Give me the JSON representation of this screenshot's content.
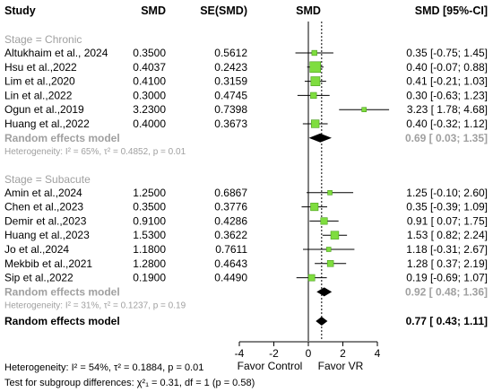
{
  "header": {
    "study": "Study",
    "smd": "SMD",
    "se": "SE(SMD)",
    "plot": "SMD",
    "ci": "SMD [95%-CI]"
  },
  "groups": [
    {
      "label": "Stage = Chronic",
      "studies": [
        {
          "name": "Altukhaim et al., 2024",
          "smd": "0.3500",
          "se": "0.5612",
          "ci_text": "0.35 [-0.75; 1.45]",
          "est": 0.35,
          "lo": -0.75,
          "hi": 1.45
        },
        {
          "name": "Hsu et al.,2022",
          "smd": "0.4037",
          "se": "0.2423",
          "ci_text": "0.40 [-0.07; 0.88]",
          "est": 0.4,
          "lo": -0.07,
          "hi": 0.88
        },
        {
          "name": "Lim et al.,2020",
          "smd": "0.4100",
          "se": "0.3159",
          "ci_text": "0.41 [-0.21; 1.03]",
          "est": 0.41,
          "lo": -0.21,
          "hi": 1.03
        },
        {
          "name": "Lin et al.,2022",
          "smd": "0.3000",
          "se": "0.4745",
          "ci_text": "0.30 [-0.63; 1.23]",
          "est": 0.3,
          "lo": -0.63,
          "hi": 1.23
        },
        {
          "name": "Ogun et al.,2019",
          "smd": "3.2300",
          "se": "0.7398",
          "ci_text": "3.23 [ 1.78; 4.68]",
          "est": 3.23,
          "lo": 1.78,
          "hi": 4.68
        },
        {
          "name": "Huang et al.,2022",
          "smd": "0.4000",
          "se": "0.3673",
          "ci_text": "0.40 [-0.32; 1.12]",
          "est": 0.4,
          "lo": -0.32,
          "hi": 1.12
        }
      ],
      "summary": {
        "label": "Random effects model",
        "ci_text": "0.69 [ 0.03; 1.35]",
        "est": 0.69,
        "lo": 0.03,
        "hi": 1.35
      },
      "heterogeneity": "Heterogeneity: I² = 65%, τ² = 0.4852, p = 0.01"
    },
    {
      "label": "Stage = Subacute",
      "studies": [
        {
          "name": "Amin et al.,2024",
          "smd": "1.2500",
          "se": "0.6867",
          "ci_text": "1.25 [-0.10; 2.60]",
          "est": 1.25,
          "lo": -0.1,
          "hi": 2.6
        },
        {
          "name": "Chen et al.,2023",
          "smd": "0.3500",
          "se": "0.3776",
          "ci_text": "0.35 [-0.39; 1.09]",
          "est": 0.35,
          "lo": -0.39,
          "hi": 1.09
        },
        {
          "name": "Demir et al.,2023",
          "smd": "0.9100",
          "se": "0.4286",
          "ci_text": "0.91 [ 0.07; 1.75]",
          "est": 0.91,
          "lo": 0.07,
          "hi": 1.75
        },
        {
          "name": "Huang et al.,2023",
          "smd": "1.5300",
          "se": "0.3622",
          "ci_text": "1.53 [ 0.82; 2.24]",
          "est": 1.53,
          "lo": 0.82,
          "hi": 2.24
        },
        {
          "name": "Jo et al.,2024",
          "smd": "1.1800",
          "se": "0.7611",
          "ci_text": "1.18 [-0.31; 2.67]",
          "est": 1.18,
          "lo": -0.31,
          "hi": 2.67
        },
        {
          "name": "Mekbib et al.,2021",
          "smd": "1.2800",
          "se": "0.4643",
          "ci_text": "1.28 [ 0.37; 2.19]",
          "est": 1.28,
          "lo": 0.37,
          "hi": 2.19
        },
        {
          "name": "Sip et al.,2022",
          "smd": "0.1900",
          "se": "0.4490",
          "ci_text": "0.19 [-0.69; 1.07]",
          "est": 0.19,
          "lo": -0.69,
          "hi": 1.07
        }
      ],
      "summary": {
        "label": "Random effects model",
        "ci_text": "0.92 [ 0.48; 1.36]",
        "est": 0.92,
        "lo": 0.48,
        "hi": 1.36
      },
      "heterogeneity": "Heterogeneity: I² = 31%, τ² = 0.1237, p = 0.19"
    }
  ],
  "overall": {
    "label": "Random effects model",
    "ci_text": "0.77 [ 0.43; 1.11]",
    "est": 0.77,
    "lo": 0.43,
    "hi": 1.11
  },
  "footer": {
    "heterogeneity": "Heterogeneity: I² = 54%, τ² = 0.1884, p = 0.01",
    "subgroup_test": "Test for subgroup differences: χ²₁ = 0.31, df = 1 (p = 0.58)",
    "favor_left": "Favor Control",
    "favor_right": "Favor VR"
  },
  "chart_data": {
    "type": "forest",
    "xlim": [
      -4,
      4
    ],
    "ticks": [
      -4,
      -2,
      0,
      2,
      4
    ],
    "reference_line": 0,
    "overall_dotted_line": 0.77,
    "colors": {
      "box": "#7fdd3f",
      "box_border": "#4a9e1c",
      "diamond": "#000000",
      "subgroup_text": "#a0a0a0"
    }
  }
}
